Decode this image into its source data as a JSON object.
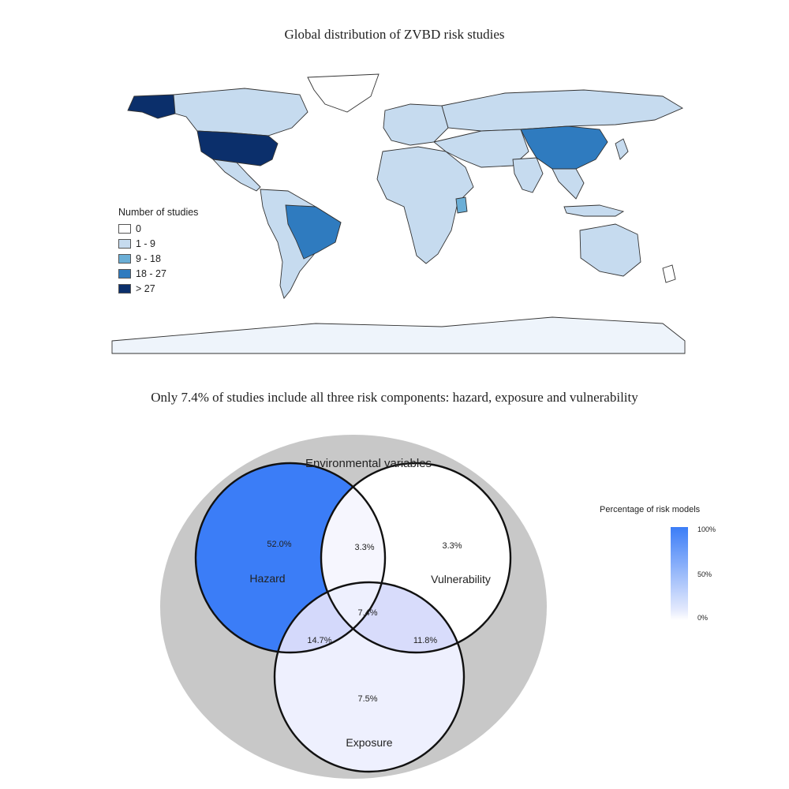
{
  "map": {
    "title": "Global distribution of ZVBD risk studies",
    "legend": {
      "title": "Number of studies",
      "items": [
        {
          "label": "0",
          "color": "#ffffff"
        },
        {
          "label": "1 - 9",
          "color": "#c6dbef"
        },
        {
          "label": "9 - 18",
          "color": "#6aaed6"
        },
        {
          "label": "18 - 27",
          "color": "#2f7bbf"
        },
        {
          "label": "> 27",
          "color": "#0b2f6b"
        }
      ]
    }
  },
  "venn": {
    "title": "Only 7.4% of studies include all three risk components: hazard, exposure and vulnerability",
    "outer_label": "Environmental variables",
    "sets": {
      "hazard": "Hazard",
      "vulnerability": "Vulnerability",
      "exposure": "Exposure"
    },
    "regions": {
      "hazard_only": "52.0%",
      "hazard_vulnerability": "3.3%",
      "vulnerability_only": "3.3%",
      "all_three": "7.4%",
      "hazard_exposure": "14.7%",
      "vulnerability_exposure": "11.8%",
      "exposure_only": "7.5%"
    },
    "colors": {
      "outer": "#c8c8c8",
      "hazard_only": "#3b7df7",
      "hazard_exposure": "#d4d9fb",
      "vulnerability_exposure": "#d8dcfb",
      "all_three": "#eef0fe",
      "hazard_vulnerability": "#f6f6fe",
      "exposure_only": "#eef0fe",
      "vulnerability_only": "#ffffff"
    },
    "colorbar": {
      "title": "Percentage of risk models",
      "ticks": [
        "100%",
        "50%",
        "0%"
      ]
    }
  }
}
